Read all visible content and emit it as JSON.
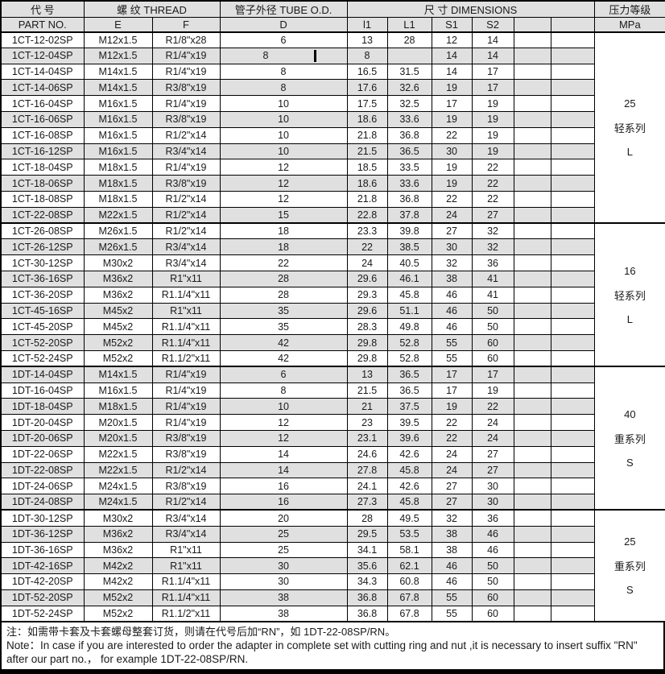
{
  "header": {
    "part_cn": "代  号",
    "part_en": "PART  NO.",
    "thread": "螺 纹  THREAD",
    "thread_e": "E",
    "thread_f": "F",
    "tube": "管子外径 TUBE O.D.",
    "tube_d": "D",
    "dims": "尺 寸   DIMENSIONS",
    "dim_l1": "l1",
    "dim_L1": "L1",
    "dim_s1": "S1",
    "dim_s2": "S2",
    "pressure_cn": "压力等级",
    "pressure_unit": "MPa"
  },
  "groups": [
    {
      "pressure": "25",
      "series": "轻系列",
      "code": "L",
      "rows": [
        {
          "part": "1CT-12-02SP",
          "e": "M12x1.5",
          "f": "R1/8\"x28",
          "d": "6",
          "l1": "13",
          "L1": "28",
          "s1": "12",
          "s2": "14"
        },
        {
          "part": "1CT-12-04SP",
          "e": "M12x1.5",
          "f": "R1/4\"x19",
          "d": "8",
          "d_caret": true,
          "l1": "8",
          "L1": "",
          "s1": "14",
          "s2": "14"
        },
        {
          "part": "1CT-14-04SP",
          "e": "M14x1.5",
          "f": "R1/4\"x19",
          "d": "8",
          "l1": "16.5",
          "L1": "31.5",
          "s1": "14",
          "s2": "17"
        },
        {
          "part": "1CT-14-06SP",
          "e": "M14x1.5",
          "f": "R3/8\"x19",
          "d": "8",
          "l1": "17.6",
          "L1": "32.6",
          "s1": "19",
          "s2": "17"
        },
        {
          "part": "1CT-16-04SP",
          "e": "M16x1.5",
          "f": "R1/4\"x19",
          "d": "10",
          "l1": "17.5",
          "L1": "32.5",
          "s1": "17",
          "s2": "19"
        },
        {
          "part": "1CT-16-06SP",
          "e": "M16x1.5",
          "f": "R3/8\"x19",
          "d": "10",
          "l1": "18.6",
          "L1": "33.6",
          "s1": "19",
          "s2": "19"
        },
        {
          "part": "1CT-16-08SP",
          "e": "M16x1.5",
          "f": "R1/2\"x14",
          "d": "10",
          "l1": "21.8",
          "L1": "36.8",
          "s1": "22",
          "s2": "19"
        },
        {
          "part": "1CT-16-12SP",
          "e": "M16x1.5",
          "f": "R3/4\"x14",
          "d": "10",
          "l1": "21.5",
          "L1": "36.5",
          "s1": "30",
          "s2": "19"
        },
        {
          "part": "1CT-18-04SP",
          "e": "M18x1.5",
          "f": "R1/4\"x19",
          "d": "12",
          "l1": "18.5",
          "L1": "33.5",
          "s1": "19",
          "s2": "22"
        },
        {
          "part": "1CT-18-06SP",
          "e": "M18x1.5",
          "f": "R3/8\"x19",
          "d": "12",
          "l1": "18.6",
          "L1": "33.6",
          "s1": "19",
          "s2": "22"
        },
        {
          "part": "1CT-18-08SP",
          "e": "M18x1.5",
          "f": "R1/2\"x14",
          "d": "12",
          "l1": "21.8",
          "L1": "36.8",
          "s1": "22",
          "s2": "22"
        },
        {
          "part": "1CT-22-08SP",
          "e": "M22x1.5",
          "f": "R1/2\"x14",
          "d": "15",
          "l1": "22.8",
          "L1": "37.8",
          "s1": "24",
          "s2": "27"
        }
      ]
    },
    {
      "pressure": "16",
      "series": "轻系列",
      "code": "L",
      "rows": [
        {
          "part": "1CT-26-08SP",
          "e": "M26x1.5",
          "f": "R1/2\"x14",
          "d": "18",
          "l1": "23.3",
          "L1": "39.8",
          "s1": "27",
          "s2": "32"
        },
        {
          "part": "1CT-26-12SP",
          "e": "M26x1.5",
          "f": "R3/4\"x14",
          "d": "18",
          "l1": "22",
          "L1": "38.5",
          "s1": "30",
          "s2": "32"
        },
        {
          "part": "1CT-30-12SP",
          "e": "M30x2",
          "f": "R3/4\"x14",
          "d": "22",
          "l1": "24",
          "L1": "40.5",
          "s1": "32",
          "s2": "36"
        },
        {
          "part": "1CT-36-16SP",
          "e": "M36x2",
          "f": "R1\"x11",
          "d": "28",
          "l1": "29.6",
          "L1": "46.1",
          "s1": "38",
          "s2": "41"
        },
        {
          "part": "1CT-36-20SP",
          "e": "M36x2",
          "f": "R1.1/4\"x11",
          "d": "28",
          "l1": "29.3",
          "L1": "45.8",
          "s1": "46",
          "s2": "41"
        },
        {
          "part": "1CT-45-16SP",
          "e": "M45x2",
          "f": "R1\"x11",
          "d": "35",
          "l1": "29.6",
          "L1": "51.1",
          "s1": "46",
          "s2": "50"
        },
        {
          "part": "1CT-45-20SP",
          "e": "M45x2",
          "f": "R1.1/4\"x11",
          "d": "35",
          "l1": "28.3",
          "L1": "49.8",
          "s1": "46",
          "s2": "50"
        },
        {
          "part": "1CT-52-20SP",
          "e": "M52x2",
          "f": "R1.1/4\"x11",
          "d": "42",
          "l1": "29.8",
          "L1": "52.8",
          "s1": "55",
          "s2": "60"
        },
        {
          "part": "1CT-52-24SP",
          "e": "M52x2",
          "f": "R1.1/2\"x11",
          "d": "42",
          "l1": "29.8",
          "L1": "52.8",
          "s1": "55",
          "s2": "60"
        }
      ]
    },
    {
      "pressure": "40",
      "series": "重系列",
      "code": "S",
      "rows": [
        {
          "part": "1DT-14-04SP",
          "e": "M14x1.5",
          "f": "R1/4\"x19",
          "d": "6",
          "l1": "13",
          "L1": "36.5",
          "s1": "17",
          "s2": "17"
        },
        {
          "part": "1DT-16-04SP",
          "e": "M16x1.5",
          "f": "R1/4\"x19",
          "d": "8",
          "l1": "21.5",
          "L1": "36.5",
          "s1": "17",
          "s2": "19"
        },
        {
          "part": "1DT-18-04SP",
          "e": "M18x1.5",
          "f": "R1/4\"x19",
          "d": "10",
          "l1": "21",
          "L1": "37.5",
          "s1": "19",
          "s2": "22"
        },
        {
          "part": "1DT-20-04SP",
          "e": "M20x1.5",
          "f": "R1/4\"x19",
          "d": "12",
          "l1": "23",
          "L1": "39.5",
          "s1": "22",
          "s2": "24"
        },
        {
          "part": "1DT-20-06SP",
          "e": "M20x1.5",
          "f": "R3/8\"x19",
          "d": "12",
          "l1": "23.1",
          "L1": "39.6",
          "s1": "22",
          "s2": "24"
        },
        {
          "part": "1DT-22-06SP",
          "e": "M22x1.5",
          "f": "R3/8\"x19",
          "d": "14",
          "l1": "24.6",
          "L1": "42.6",
          "s1": "24",
          "s2": "27"
        },
        {
          "part": "1DT-22-08SP",
          "e": "M22x1.5",
          "f": "R1/2\"x14",
          "d": "14",
          "l1": "27.8",
          "L1": "45.8",
          "s1": "24",
          "s2": "27"
        },
        {
          "part": "1DT-24-06SP",
          "e": "M24x1.5",
          "f": "R3/8\"x19",
          "d": "16",
          "l1": "24.1",
          "L1": "42.6",
          "s1": "27",
          "s2": "30"
        },
        {
          "part": "1DT-24-08SP",
          "e": "M24x1.5",
          "f": "R1/2\"x14",
          "d": "16",
          "l1": "27.3",
          "L1": "45.8",
          "s1": "27",
          "s2": "30"
        }
      ]
    },
    {
      "pressure": "25",
      "series": "重系列",
      "code": "S",
      "rows": [
        {
          "part": "1DT-30-12SP",
          "e": "M30x2",
          "f": "R3/4\"x14",
          "d": "20",
          "l1": "28",
          "L1": "49.5",
          "s1": "32",
          "s2": "36"
        },
        {
          "part": "1DT-36-12SP",
          "e": "M36x2",
          "f": "R3/4\"x14",
          "d": "25",
          "l1": "29.5",
          "L1": "53.5",
          "s1": "38",
          "s2": "46"
        },
        {
          "part": "1DT-36-16SP",
          "e": "M36x2",
          "f": "R1\"x11",
          "d": "25",
          "l1": "34.1",
          "L1": "58.1",
          "s1": "38",
          "s2": "46"
        },
        {
          "part": "1DT-42-16SP",
          "e": "M42x2",
          "f": "R1\"x11",
          "d": "30",
          "l1": "35.6",
          "L1": "62.1",
          "s1": "46",
          "s2": "50"
        },
        {
          "part": "1DT-42-20SP",
          "e": "M42x2",
          "f": "R1.1/4\"x11",
          "d": "30",
          "l1": "34.3",
          "L1": "60.8",
          "s1": "46",
          "s2": "50"
        },
        {
          "part": "1DT-52-20SP",
          "e": "M52x2",
          "f": "R1.1/4\"x11",
          "d": "38",
          "l1": "36.8",
          "L1": "67.8",
          "s1": "55",
          "s2": "60"
        },
        {
          "part": "1DT-52-24SP",
          "e": "M52x2",
          "f": "R1.1/2\"x11",
          "d": "38",
          "l1": "36.8",
          "L1": "67.8",
          "s1": "55",
          "s2": "60"
        }
      ]
    }
  ],
  "notes": {
    "cn": "注：如需带卡套及卡套螺母整套订货，则请在代号后加“RN”，如 1DT-22-08SP/RN。",
    "en": "Note：In case if you are interested to order the adapter in complete set with cutting ring and nut ,it is necessary to insert suffix \"RN\" after our part no.，  for example 1DT-22-08SP/RN."
  },
  "colors": {
    "row_alt": "#e0e0e0",
    "header_bg": "#e0e0e0",
    "border": "#000000",
    "background": "#ffffff"
  }
}
